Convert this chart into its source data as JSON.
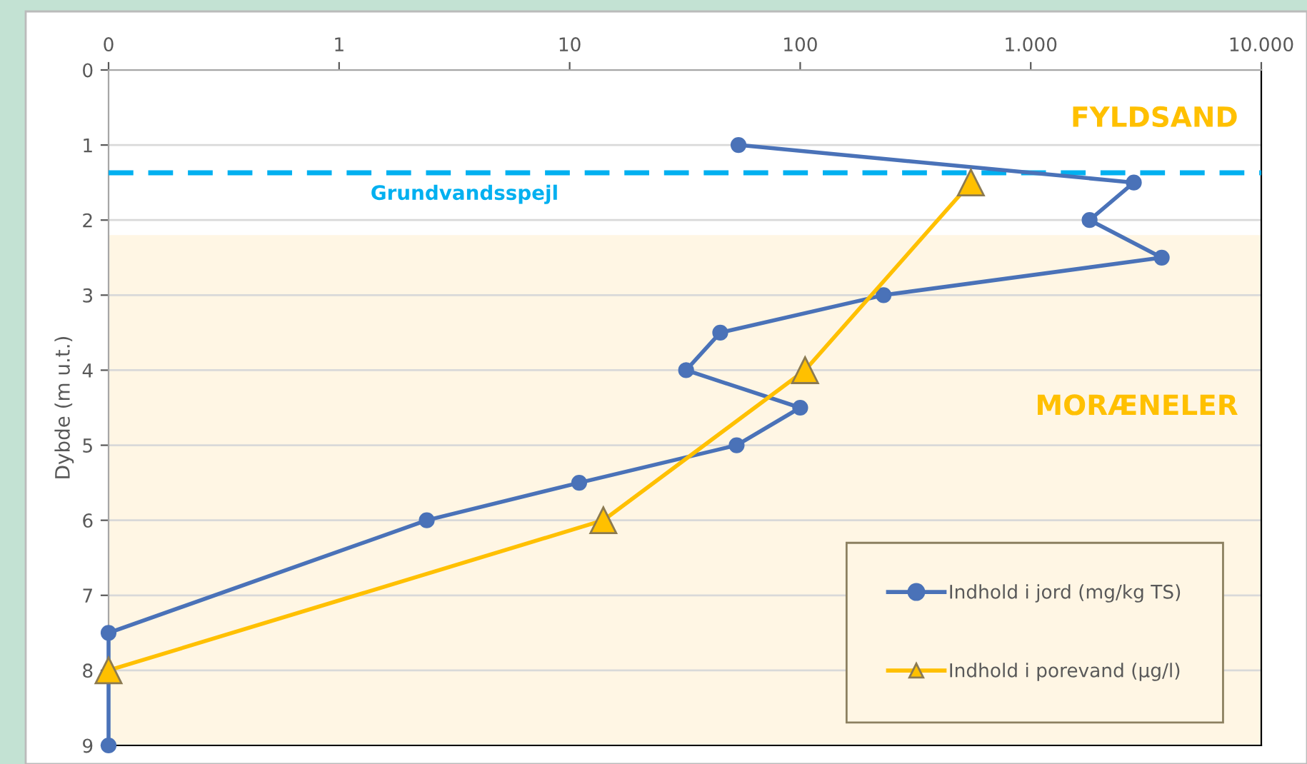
{
  "chart_data": {
    "type": "line",
    "ylabel": "Dybde (m u.t.)",
    "series": [
      {
        "name": "Indhold i jord (mg/kg TS)",
        "color": "#4a72b8",
        "marker": "circle",
        "x": [
          54,
          2800,
          1800,
          3700,
          230,
          45,
          32,
          100,
          53,
          11,
          2.4,
          0.1,
          0.1
        ],
        "values": [
          1,
          1.5,
          2,
          2.5,
          3,
          3.5,
          4,
          4.5,
          5,
          5.5,
          6,
          7.5,
          9
        ]
      },
      {
        "name": "Indhold i porevand (µg/l)",
        "color": "#ffc000",
        "marker": "triangle",
        "x": [
          550,
          105,
          14,
          0.1
        ],
        "values": [
          1.5,
          4,
          6,
          8
        ]
      }
    ],
    "log": "x",
    "xlim": [
      0.1,
      10000
    ],
    "xticks": [
      {
        "value": 0.1,
        "label": "0"
      },
      1,
      10,
      100,
      {
        "value": 1000,
        "label": "1.000"
      },
      {
        "value": 10000,
        "label": "10.000"
      }
    ],
    "ylim": [
      9,
      0
    ],
    "yticks": [
      0,
      1,
      2,
      3,
      4,
      5,
      6,
      7,
      8,
      9
    ],
    "grid": "y",
    "legend": "bottom right",
    "ref_lines": [
      {
        "axis": "y",
        "value": 1.37,
        "label": "Grundvandsspejl",
        "color": "#00b0f0",
        "line_style": "dashed"
      }
    ],
    "annotations": [
      "FYLDSAND"
    ],
    "bands": [
      {
        "axis": "y",
        "from": 2.2,
        "to": 9,
        "label": "MORÆNELER",
        "color": "#fff6e4"
      }
    ]
  }
}
